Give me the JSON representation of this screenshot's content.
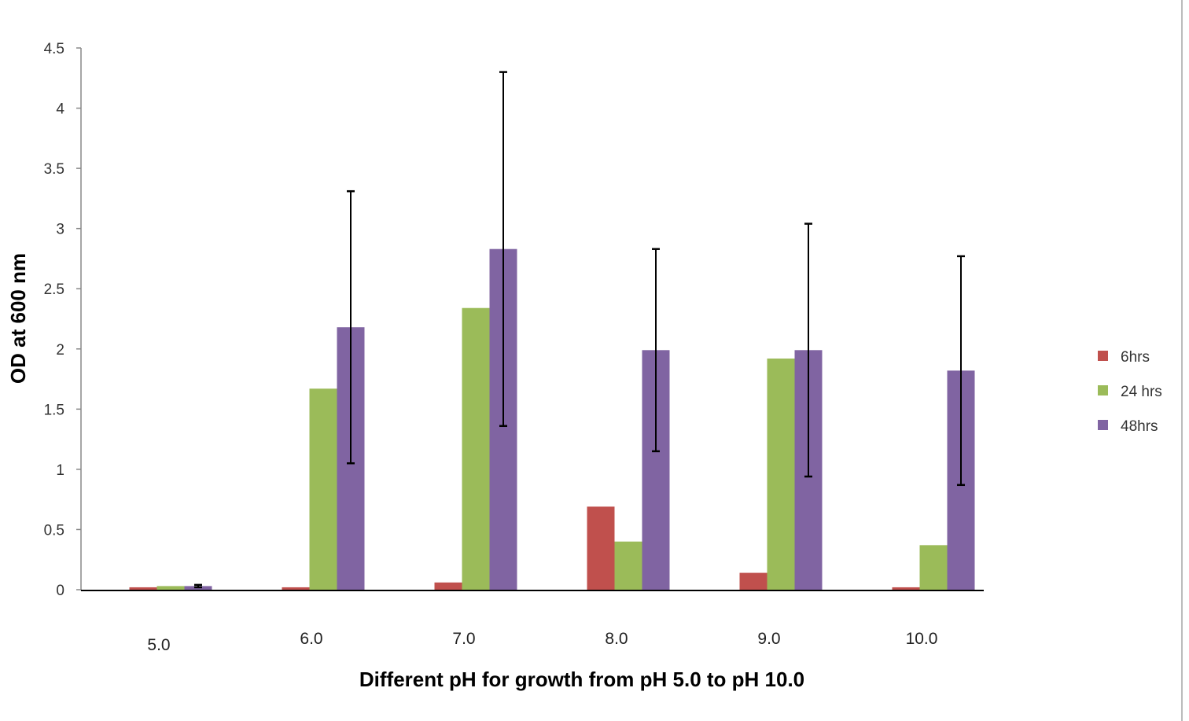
{
  "chart_data": {
    "type": "bar",
    "title": "",
    "xlabel": "Different pH for growth from pH 5.0 to pH 10.0",
    "ylabel": "OD at 600 nm",
    "categories": [
      "5.0",
      "6.0",
      "7.0",
      "8.0",
      "9.0",
      "10.0"
    ],
    "ylim": [
      0,
      4.5
    ],
    "yticks": [
      0,
      0.5,
      1,
      1.5,
      2,
      2.5,
      3,
      3.5,
      4,
      4.5
    ],
    "ytick_labels": [
      "0",
      "0.5",
      "1",
      "1.5",
      "2",
      "2.5",
      "3",
      "3.5",
      "4",
      "4.5"
    ],
    "grid": false,
    "legend_position": "right",
    "series": [
      {
        "name": "6hrs",
        "color": "#c0504d",
        "values": [
          0.02,
          0.02,
          0.06,
          0.69,
          0.14,
          0.02
        ],
        "errors": [
          0,
          0,
          0,
          0,
          0,
          0
        ]
      },
      {
        "name": "24 hrs",
        "color": "#9bbb59",
        "values": [
          0.03,
          1.67,
          2.34,
          0.4,
          1.92,
          0.37
        ],
        "errors": [
          0,
          0,
          0,
          0,
          0,
          0
        ]
      },
      {
        "name": "48hrs",
        "color": "#8064a2",
        "values": [
          0.03,
          2.18,
          2.83,
          1.99,
          1.99,
          1.82
        ],
        "errors": [
          0.01,
          1.13,
          1.47,
          0.84,
          1.05,
          0.95
        ]
      }
    ]
  }
}
